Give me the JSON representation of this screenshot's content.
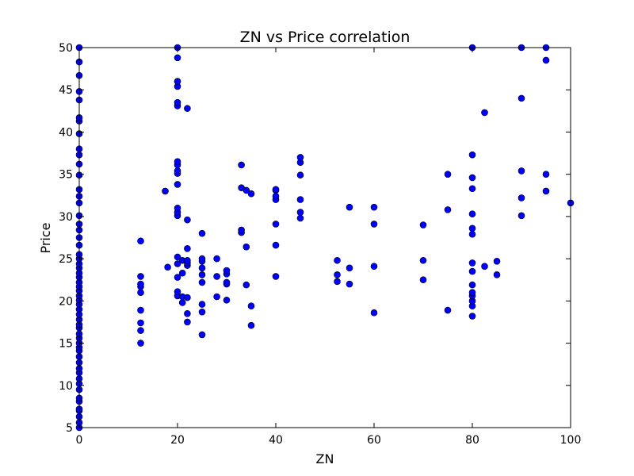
{
  "chart_data": {
    "type": "scatter",
    "title": "ZN vs Price correlation",
    "xlabel": "ZN",
    "ylabel": "Price",
    "xlim": [
      0,
      100
    ],
    "ylim": [
      5,
      50
    ],
    "xticks": [
      0,
      20,
      40,
      60,
      80,
      100
    ],
    "yticks": [
      5,
      10,
      15,
      20,
      25,
      30,
      35,
      40,
      45,
      50
    ],
    "grid": false,
    "marker_color": "#0000ff",
    "marker_edge_color": "#000000",
    "series": [
      {
        "points": [
          [
            0,
            5.0
          ],
          [
            0,
            5.6
          ],
          [
            0,
            6.3
          ],
          [
            0,
            7.0
          ],
          [
            0,
            7.2
          ],
          [
            0,
            8.1
          ],
          [
            0,
            8.5
          ],
          [
            0,
            9.5
          ],
          [
            0,
            10.2
          ],
          [
            0,
            10.8
          ],
          [
            0,
            11.5
          ],
          [
            0,
            12.0
          ],
          [
            0,
            12.7
          ],
          [
            0,
            13.4
          ],
          [
            0,
            14.1
          ],
          [
            0,
            14.5
          ],
          [
            0,
            15.0
          ],
          [
            0,
            15.6
          ],
          [
            0,
            16.1
          ],
          [
            0,
            16.8
          ],
          [
            0,
            17.2
          ],
          [
            0,
            17.8
          ],
          [
            0,
            18.4
          ],
          [
            0,
            19.0
          ],
          [
            0,
            19.6
          ],
          [
            0,
            20.1
          ],
          [
            0,
            20.6
          ],
          [
            0,
            21.2
          ],
          [
            0,
            21.7
          ],
          [
            0,
            22.2
          ],
          [
            0,
            22.8
          ],
          [
            0,
            23.3
          ],
          [
            0,
            23.9
          ],
          [
            0,
            24.4
          ],
          [
            0,
            25.0
          ],
          [
            0,
            25.5
          ],
          [
            0,
            26.6
          ],
          [
            0,
            27.5
          ],
          [
            0,
            28.4
          ],
          [
            0,
            29.1
          ],
          [
            0,
            30.1
          ],
          [
            0,
            31.6
          ],
          [
            0,
            32.4
          ],
          [
            0,
            33.2
          ],
          [
            0,
            34.9
          ],
          [
            0,
            36.2
          ],
          [
            0,
            37.3
          ],
          [
            0,
            38.0
          ],
          [
            0,
            39.8
          ],
          [
            0,
            41.3
          ],
          [
            0,
            41.7
          ],
          [
            0,
            43.8
          ],
          [
            0,
            44.8
          ],
          [
            0,
            46.7
          ],
          [
            0,
            48.3
          ],
          [
            0,
            50.0
          ],
          [
            12.5,
            15.0
          ],
          [
            12.5,
            16.5
          ],
          [
            12.5,
            17.4
          ],
          [
            12.5,
            18.9
          ],
          [
            12.5,
            21.0
          ],
          [
            12.5,
            21.7
          ],
          [
            12.5,
            22.0
          ],
          [
            12.5,
            22.9
          ],
          [
            12.5,
            27.1
          ],
          [
            17.5,
            33.0
          ],
          [
            18,
            24.0
          ],
          [
            20,
            20.6
          ],
          [
            20,
            21.1
          ],
          [
            20,
            22.8
          ],
          [
            20,
            24.4
          ],
          [
            20,
            25.2
          ],
          [
            20,
            30.1
          ],
          [
            20,
            30.5
          ],
          [
            20,
            31.0
          ],
          [
            20,
            33.8
          ],
          [
            20,
            35.1
          ],
          [
            20,
            35.4
          ],
          [
            20,
            36.1
          ],
          [
            20,
            36.5
          ],
          [
            20,
            43.1
          ],
          [
            20,
            43.5
          ],
          [
            20,
            45.4
          ],
          [
            20,
            46.0
          ],
          [
            20,
            48.8
          ],
          [
            20,
            50.0
          ],
          [
            21,
            19.8
          ],
          [
            21,
            20.5
          ],
          [
            21,
            23.3
          ],
          [
            21,
            24.8
          ],
          [
            22,
            17.5
          ],
          [
            22,
            18.5
          ],
          [
            22,
            20.4
          ],
          [
            22,
            24.2
          ],
          [
            22,
            24.5
          ],
          [
            22,
            24.8
          ],
          [
            22,
            26.2
          ],
          [
            22,
            29.6
          ],
          [
            22,
            42.8
          ],
          [
            25,
            16.0
          ],
          [
            25,
            18.7
          ],
          [
            25,
            19.6
          ],
          [
            25,
            22.2
          ],
          [
            25,
            23.1
          ],
          [
            25,
            23.9
          ],
          [
            25,
            24.7
          ],
          [
            25,
            25.0
          ],
          [
            25,
            28.0
          ],
          [
            28,
            20.5
          ],
          [
            28,
            22.9
          ],
          [
            28,
            25.0
          ],
          [
            30,
            20.1
          ],
          [
            30,
            22.0
          ],
          [
            30,
            22.2
          ],
          [
            30,
            23.2
          ],
          [
            30,
            23.6
          ],
          [
            33,
            28.1
          ],
          [
            33,
            28.4
          ],
          [
            33,
            33.4
          ],
          [
            33,
            36.1
          ],
          [
            34,
            21.9
          ],
          [
            34,
            26.4
          ],
          [
            34,
            33.1
          ],
          [
            35,
            17.1
          ],
          [
            35,
            19.4
          ],
          [
            35,
            32.7
          ],
          [
            40,
            22.9
          ],
          [
            40,
            26.6
          ],
          [
            40,
            29.1
          ],
          [
            40,
            32.0
          ],
          [
            40,
            32.4
          ],
          [
            40,
            33.1
          ],
          [
            40,
            33.2
          ],
          [
            45,
            29.8
          ],
          [
            45,
            30.5
          ],
          [
            45,
            32.0
          ],
          [
            45,
            34.9
          ],
          [
            45,
            36.4
          ],
          [
            45,
            37.0
          ],
          [
            52.5,
            22.3
          ],
          [
            52.5,
            23.1
          ],
          [
            52.5,
            24.8
          ],
          [
            55,
            22.0
          ],
          [
            55,
            23.9
          ],
          [
            55,
            31.1
          ],
          [
            60,
            18.6
          ],
          [
            60,
            24.1
          ],
          [
            60,
            29.1
          ],
          [
            60,
            31.1
          ],
          [
            70,
            22.5
          ],
          [
            70,
            24.8
          ],
          [
            70,
            29.0
          ],
          [
            75,
            18.9
          ],
          [
            75,
            30.8
          ],
          [
            75,
            35.0
          ],
          [
            80,
            18.2
          ],
          [
            80,
            19.4
          ],
          [
            80,
            20.0
          ],
          [
            80,
            20.6
          ],
          [
            80,
            21.0
          ],
          [
            80,
            21.9
          ],
          [
            80,
            23.5
          ],
          [
            80,
            24.5
          ],
          [
            80,
            27.9
          ],
          [
            80,
            28.6
          ],
          [
            80,
            30.3
          ],
          [
            80,
            33.3
          ],
          [
            80,
            34.6
          ],
          [
            80,
            37.3
          ],
          [
            80,
            50.0
          ],
          [
            82.5,
            24.1
          ],
          [
            82.5,
            42.3
          ],
          [
            85,
            23.1
          ],
          [
            85,
            24.7
          ],
          [
            90,
            30.1
          ],
          [
            90,
            32.2
          ],
          [
            90,
            35.4
          ],
          [
            90,
            44.0
          ],
          [
            90,
            50.0
          ],
          [
            95,
            33.0
          ],
          [
            95,
            35.0
          ],
          [
            95,
            48.5
          ],
          [
            95,
            50.0
          ],
          [
            100,
            31.6
          ]
        ]
      }
    ]
  }
}
